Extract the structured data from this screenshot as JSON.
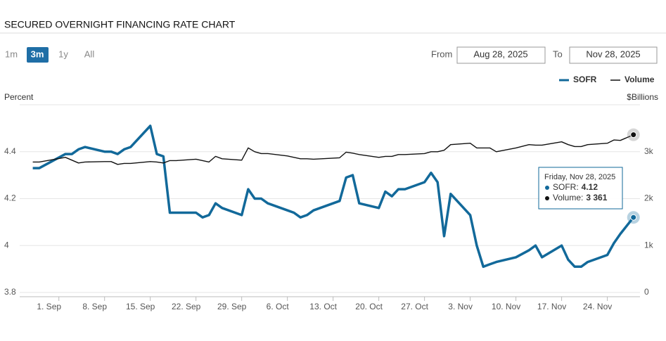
{
  "title": "SECURED OVERNIGHT FINANCING RATE CHART",
  "range_buttons": [
    "1m",
    "3m",
    "1y",
    "All"
  ],
  "selected_range": 1,
  "from_label": "From",
  "from_value": "Aug 28, 2025",
  "to_label": "To",
  "to_value": "Nov 28, 2025",
  "tooltip": {
    "title": "Friday, Nov 28, 2025",
    "rows": [
      {
        "label": "SOFR:",
        "value": "4.12"
      },
      {
        "label": "Volume:",
        "value": "3 361"
      }
    ]
  },
  "chart_data": {
    "type": "line",
    "ylabel": "Percent",
    "y2label": "$Billions",
    "x": [
      "2025-08-28",
      "2025-08-29",
      "2025-09-02",
      "2025-09-03",
      "2025-09-04",
      "2025-09-05",
      "2025-09-08",
      "2025-09-09",
      "2025-09-10",
      "2025-09-11",
      "2025-09-12",
      "2025-09-15",
      "2025-09-16",
      "2025-09-17",
      "2025-09-18",
      "2025-09-19",
      "2025-09-22",
      "2025-09-23",
      "2025-09-24",
      "2025-09-25",
      "2025-09-26",
      "2025-09-29",
      "2025-09-30",
      "2025-10-01",
      "2025-10-02",
      "2025-10-03",
      "2025-10-06",
      "2025-10-07",
      "2025-10-08",
      "2025-10-09",
      "2025-10-10",
      "2025-10-14",
      "2025-10-15",
      "2025-10-16",
      "2025-10-17",
      "2025-10-20",
      "2025-10-21",
      "2025-10-22",
      "2025-10-23",
      "2025-10-24",
      "2025-10-27",
      "2025-10-28",
      "2025-10-29",
      "2025-10-30",
      "2025-10-31",
      "2025-11-03",
      "2025-11-04",
      "2025-11-05",
      "2025-11-06",
      "2025-11-07",
      "2025-11-10",
      "2025-11-12",
      "2025-11-13",
      "2025-11-14",
      "2025-11-17",
      "2025-11-18",
      "2025-11-19",
      "2025-11-20",
      "2025-11-21",
      "2025-11-24",
      "2025-11-25",
      "2025-11-26",
      "2025-11-28"
    ],
    "series": [
      {
        "name": "SOFR",
        "color": "#12699a",
        "values": [
          4.33,
          4.33,
          4.39,
          4.39,
          4.41,
          4.42,
          4.4,
          4.4,
          4.39,
          4.41,
          4.42,
          4.51,
          4.39,
          4.38,
          4.14,
          4.14,
          4.14,
          4.12,
          4.13,
          4.18,
          4.16,
          4.13,
          4.24,
          4.2,
          4.2,
          4.18,
          4.15,
          4.14,
          4.12,
          4.13,
          4.15,
          4.19,
          4.29,
          4.3,
          4.18,
          4.16,
          4.23,
          4.21,
          4.24,
          4.24,
          4.27,
          4.31,
          4.27,
          4.04,
          4.22,
          4.13,
          4.0,
          3.91,
          3.92,
          3.93,
          3.95,
          3.98,
          4.0,
          3.95,
          4.0,
          3.94,
          3.91,
          3.91,
          3.93,
          3.96,
          4.01,
          4.05,
          4.12
        ]
      },
      {
        "name": "Volume",
        "color": "#111111",
        "axis": "y2",
        "values": [
          2780,
          2780,
          2880,
          2820,
          2760,
          2780,
          2790,
          2790,
          2730,
          2750,
          2750,
          2790,
          2780,
          2760,
          2810,
          2810,
          2840,
          2810,
          2780,
          2900,
          2850,
          2820,
          3080,
          3000,
          2960,
          2960,
          2910,
          2880,
          2850,
          2850,
          2840,
          2870,
          2990,
          2970,
          2940,
          2880,
          2900,
          2900,
          2940,
          2940,
          2960,
          3000,
          3000,
          3030,
          3150,
          3180,
          3080,
          3080,
          3080,
          3000,
          3080,
          3150,
          3140,
          3140,
          3210,
          3150,
          3110,
          3110,
          3150,
          3180,
          3250,
          3240,
          3361
        ]
      }
    ],
    "xlim": [
      "2025-08-26",
      "2025-11-29"
    ],
    "xticks": [
      {
        "value": "2025-09-01",
        "label": "1. Sep"
      },
      {
        "value": "2025-09-08",
        "label": "8. Sep"
      },
      {
        "value": "2025-09-15",
        "label": "15. Sep"
      },
      {
        "value": "2025-09-22",
        "label": "22. Sep"
      },
      {
        "value": "2025-09-29",
        "label": "29. Sep"
      },
      {
        "value": "2025-10-06",
        "label": "6. Oct"
      },
      {
        "value": "2025-10-13",
        "label": "13. Oct"
      },
      {
        "value": "2025-10-20",
        "label": "20. Oct"
      },
      {
        "value": "2025-10-27",
        "label": "27. Oct"
      },
      {
        "value": "2025-11-03",
        "label": "3. Nov"
      },
      {
        "value": "2025-11-10",
        "label": "10. Nov"
      },
      {
        "value": "2025-11-17",
        "label": "17. Nov"
      },
      {
        "value": "2025-11-24",
        "label": "24. Nov"
      }
    ],
    "ylim": [
      3.8,
      4.6
    ],
    "yticks": [
      3.8,
      4,
      4.2,
      4.4
    ],
    "y2lim": [
      0,
      4000
    ],
    "y2ticks": [
      0,
      {
        "value": 1000,
        "label": "1k"
      },
      {
        "value": 2000,
        "label": "2k"
      },
      {
        "value": 3000,
        "label": "3k"
      }
    ],
    "grid": true,
    "legend": "top-right"
  }
}
